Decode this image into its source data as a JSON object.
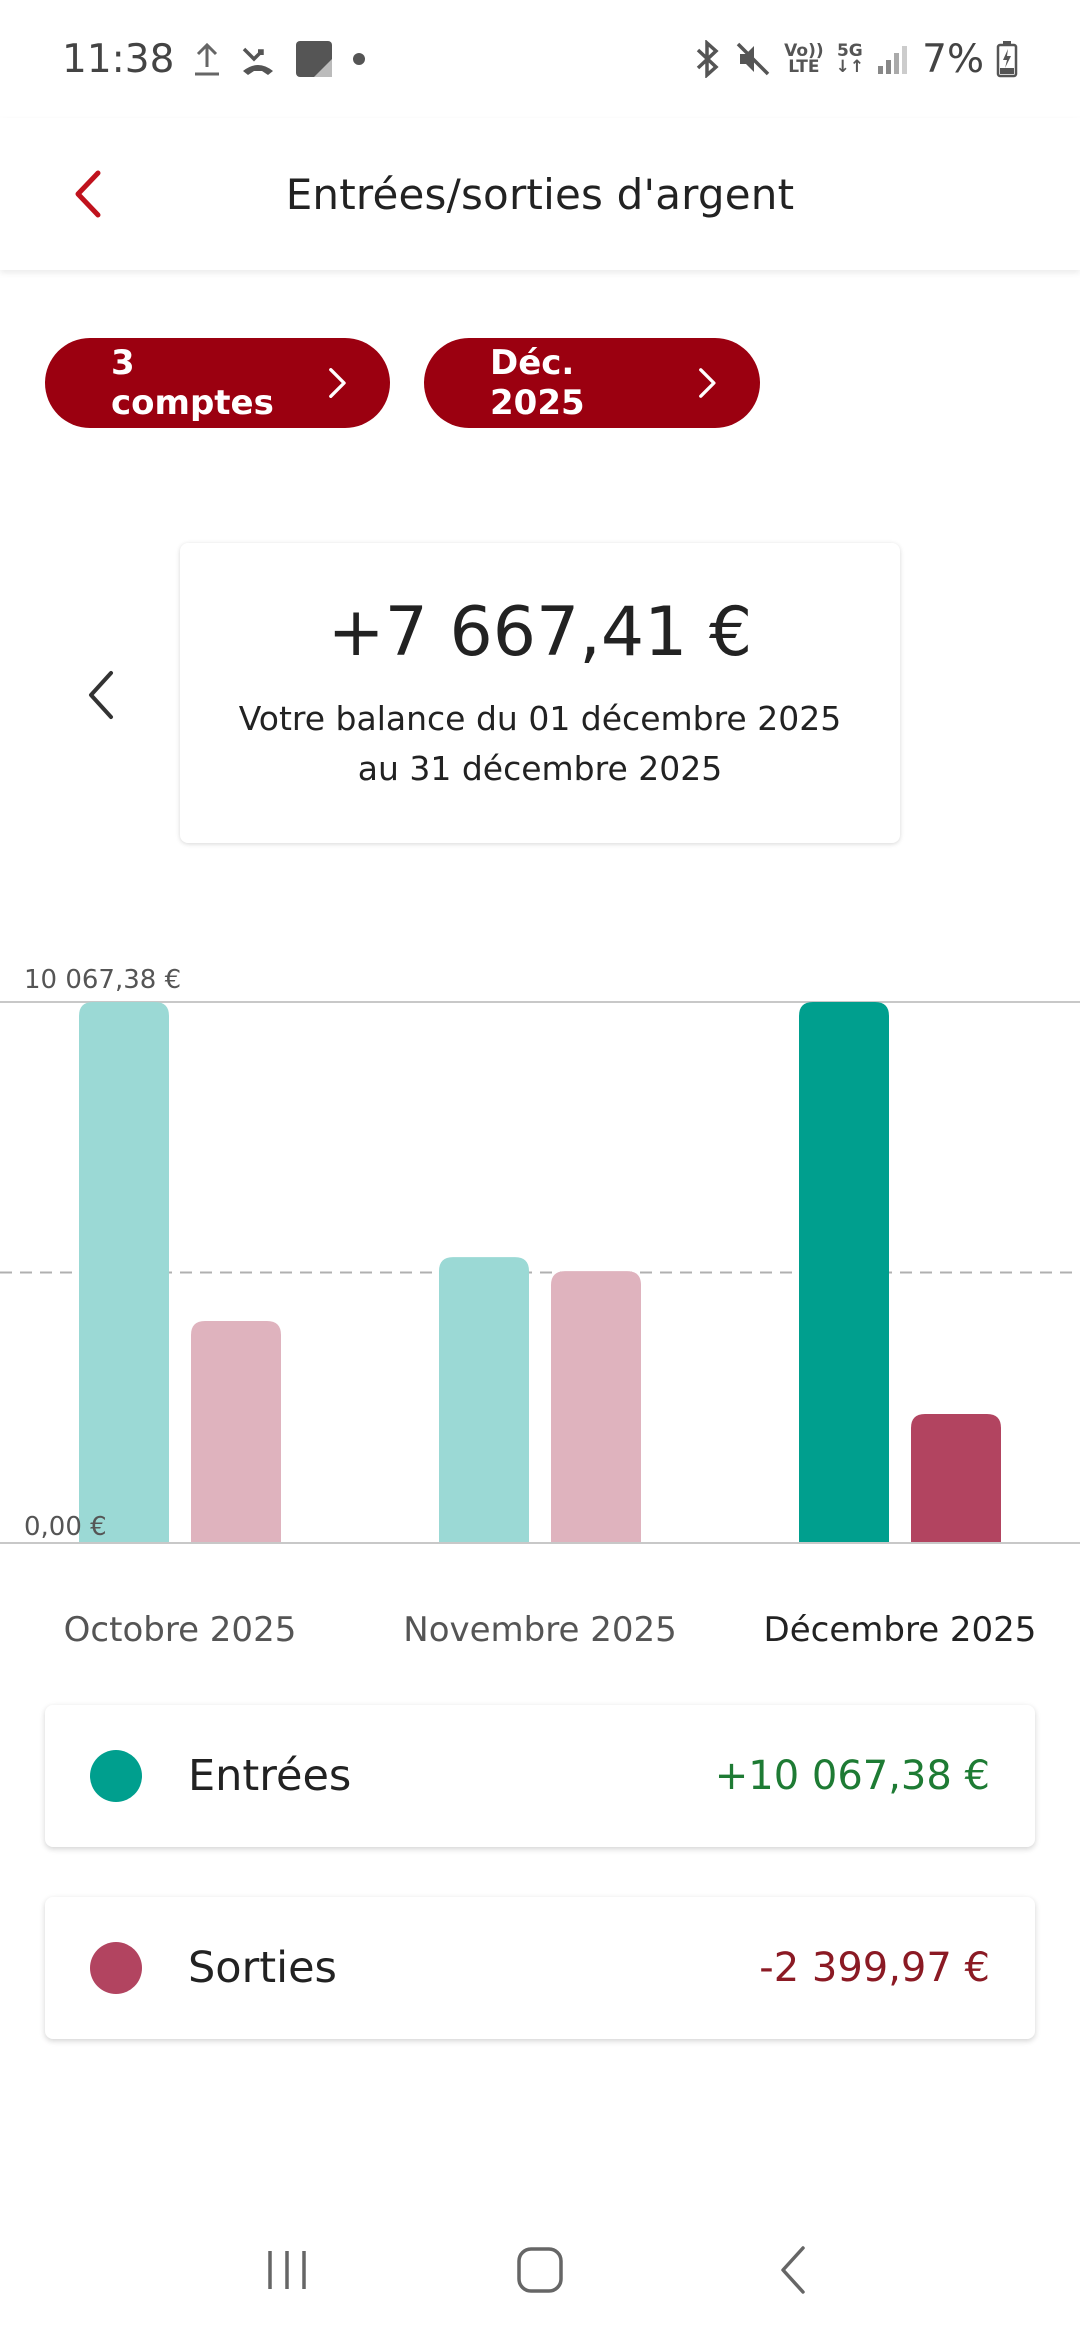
{
  "status_bar": {
    "time": "11:38",
    "battery": "7%",
    "network_top": "Vo))",
    "network_bottom": "LTE",
    "gen_top": "5G",
    "gen_bottom": "↓↑"
  },
  "header": {
    "title": "Entrées/sorties d'argent"
  },
  "filters": {
    "accounts_label": "3 comptes",
    "period_label": "Déc. 2025"
  },
  "balance": {
    "amount": "+7 667,41 €",
    "caption_line1": "Votre balance du 01 décembre 2025",
    "caption_line2": "au 31 décembre 2025"
  },
  "colors": {
    "brand": "#9b0010",
    "income": "#009f8e",
    "income_faded": "#9bd9d5",
    "expense": "#b24460",
    "expense_faded": "#dfb3be",
    "income_text": "#1e7b34",
    "expense_text": "#8b1a24"
  },
  "chart_data": {
    "type": "bar",
    "categories": [
      "Octobre 2025",
      "Novembre 2025",
      "Décembre 2025"
    ],
    "series": [
      {
        "name": "Entrées",
        "values": [
          10067.38,
          5320,
          10067.38
        ]
      },
      {
        "name": "Sorties",
        "values": [
          4130,
          5060,
          2399.97
        ]
      }
    ],
    "active_category": "Décembre 2025",
    "ylim": [
      0,
      10067.38
    ],
    "max_label": "10 067,38 €",
    "min_label": "0,00 €",
    "midline": 5033.69,
    "grid": true
  },
  "legend": {
    "income_label": "Entrées",
    "income_value": "+10 067,38 €",
    "expense_label": "Sorties",
    "expense_value": "-2 399,97 €"
  }
}
